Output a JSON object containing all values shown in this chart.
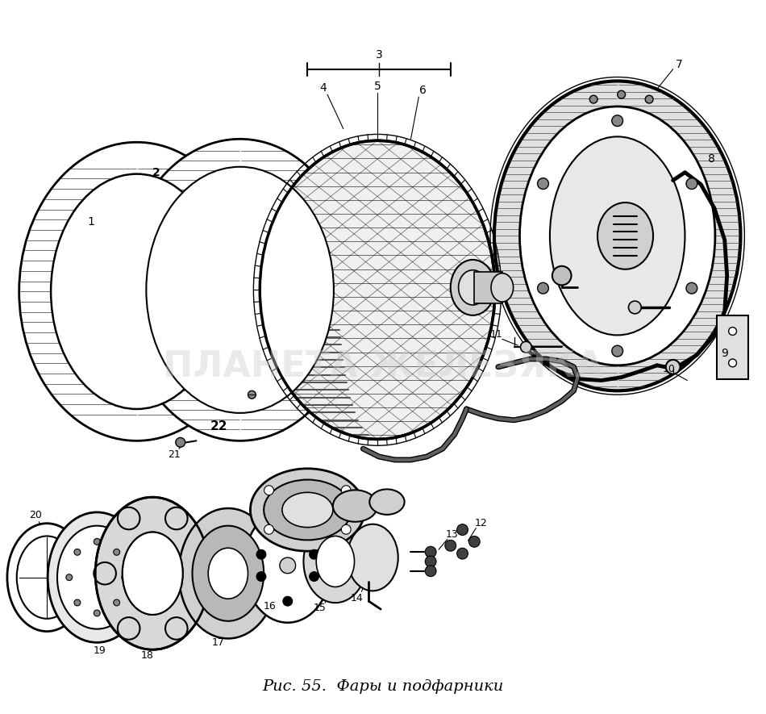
{
  "title": "Рис. 55.  Фары и подфарники",
  "title_fontsize": 14,
  "background_color": "#ffffff",
  "fig_width": 9.5,
  "fig_height": 8.85,
  "watermark_text": "ПЛАНЕТА ЖЕЛЕЗЯКА",
  "watermark_color": "#cccccc",
  "watermark_fontsize": 32,
  "watermark_alpha": 0.4,
  "label_fontsize": 10,
  "label_bold": [
    "2",
    "22"
  ]
}
